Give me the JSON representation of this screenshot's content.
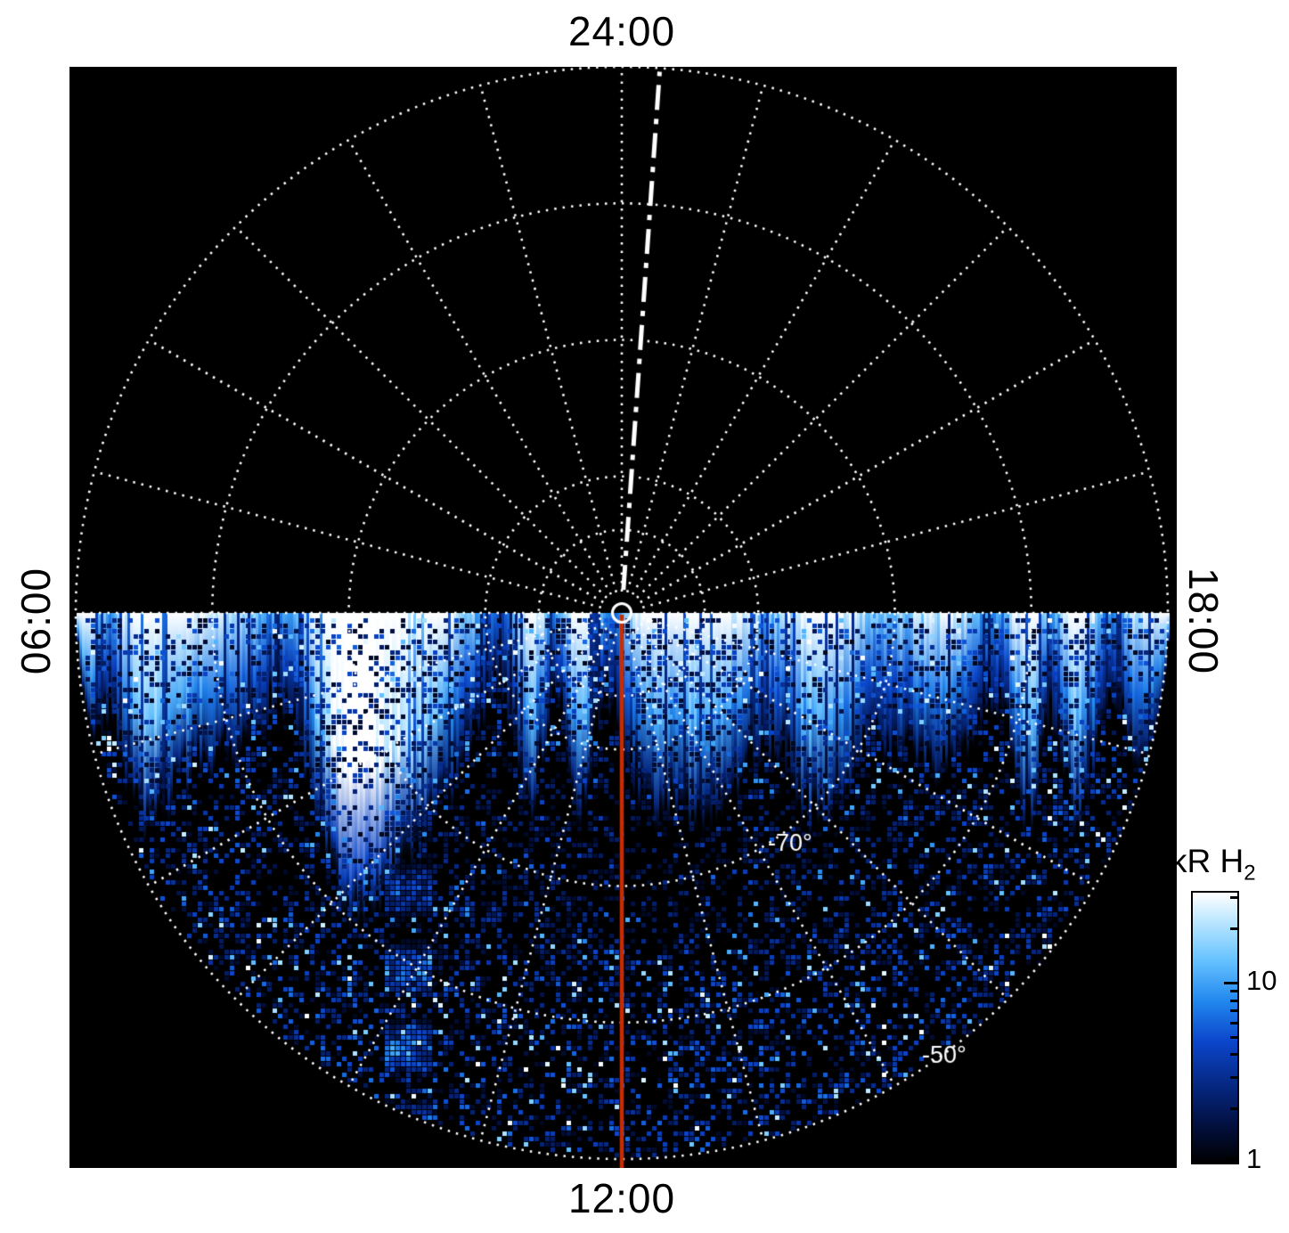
{
  "figure": {
    "background": "#ffffff",
    "plot_background": "#000000"
  },
  "chart_data": {
    "type": "heatmap",
    "projection": "polar",
    "description": "Polar projection map of H2 auroral emission versus local time (angle) and latitude (radius); emission fills the lower (dayside, 06-12-18 LT) half, with a bright auroral arc just below the 06:00-18:00 line and speckled weaker emission toward the equatorward edge",
    "hour_labels": {
      "top": "24:00",
      "bottom": "12:00",
      "left": "06:00",
      "right": "18:00"
    },
    "spokes_every_deg": 15,
    "rings_fraction": [
      0.152,
      0.25,
      0.5,
      0.75,
      1.0
    ],
    "radial_ticks": [
      {
        "label": "-70°",
        "ring_fraction": 0.5
      },
      {
        "label": "-50°",
        "ring_fraction": 1.0
      }
    ],
    "grid_color": "#ffffff",
    "meridian_markers": {
      "midnight_dash_dot": {
        "color": "#ffffff",
        "angle_deg_east_of_midnight": 4,
        "style": "dash-dot"
      },
      "noon_solid": {
        "color": "#c92c00",
        "style": "solid"
      }
    },
    "center_marker": {
      "shape": "circle",
      "color": "#ffffff"
    },
    "colorbar": {
      "label": "kR H",
      "label_sub": "2",
      "scale": "log",
      "ticks": [
        {
          "label": "10",
          "fraction_from_top": 0.333
        },
        {
          "label": "1",
          "fraction_from_top": 0.985
        }
      ],
      "minor_tick_fractions_from_top": [
        0.799,
        0.682,
        0.599,
        0.534,
        0.481,
        0.437,
        0.398,
        0.364,
        0.133,
        0.015
      ],
      "colormap": [
        [
          0.0,
          "#000000"
        ],
        [
          0.14,
          "#021040"
        ],
        [
          0.3,
          "#062a88"
        ],
        [
          0.45,
          "#0b46cc"
        ],
        [
          0.6,
          "#2288ee"
        ],
        [
          0.75,
          "#66c2ff"
        ],
        [
          0.9,
          "#bfe8ff"
        ],
        [
          1.0,
          "#ffffff"
        ]
      ]
    },
    "emission": {
      "region": "lower semicircle only",
      "main_oval": "bright streaked arc just equatorward of the 06:00-18:00 line, brightest (white) near 07-09 LT",
      "seed": 42
    }
  }
}
